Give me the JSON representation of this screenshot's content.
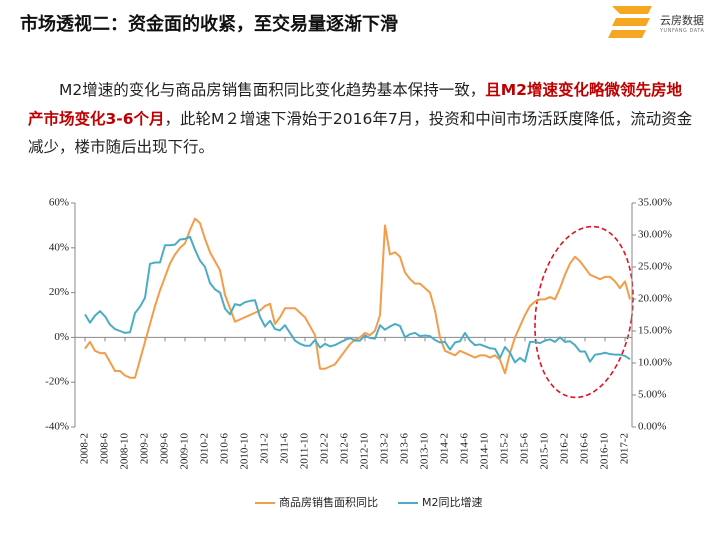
{
  "title": "市场透视二：资金面的收紧，至交易量逐渐下滑",
  "logo": {
    "name": "云房数据",
    "subname": "YUNFANG DATA"
  },
  "paragraph": [
    "M2增速的变化与商品房销售面积同比变化趋势基本保持一致，",
    "且M2增速变化略微领先房地产市场变化3-6个月",
    "，此轮M２增速下滑始于2016年7月，投资和中间市场活跃度降低，流动资金减少，楼市随后出现下行。"
  ],
  "chart_data": {
    "type": "line",
    "categories": [
      "2008-2",
      null,
      null,
      null,
      "2008-6",
      null,
      null,
      null,
      "2008-10",
      null,
      null,
      null,
      "2009-2",
      null,
      null,
      null,
      "2009-6",
      null,
      null,
      null,
      "2009-10",
      null,
      null,
      null,
      "2010-2",
      null,
      null,
      null,
      "2010-6",
      null,
      null,
      null,
      "2010-10",
      null,
      null,
      null,
      "2011-2",
      null,
      null,
      null,
      "2011-6",
      null,
      null,
      null,
      "2011-10",
      null,
      null,
      null,
      "2012-2",
      null,
      null,
      null,
      "2012-6",
      null,
      null,
      null,
      "2012-10",
      null,
      null,
      null,
      "2013-2",
      null,
      null,
      null,
      "2013-6",
      null,
      null,
      null,
      "2013-10",
      null,
      null,
      null,
      "2014-2",
      null,
      null,
      null,
      "2014-6",
      null,
      null,
      null,
      "2014-10",
      null,
      null,
      null,
      "2015-2",
      null,
      null,
      null,
      "2015-6",
      null,
      null,
      null,
      "2015-10",
      null,
      null,
      null,
      "2016-2",
      null,
      null,
      null,
      "2016-6",
      null,
      null,
      null,
      "2016-10",
      null,
      null,
      null,
      "2017-2",
      null
    ],
    "series": [
      {
        "name": "商品房销售面积同比",
        "color": "#f39c4a",
        "values": [
          -5,
          -2,
          -6,
          -7,
          -7,
          -11,
          -15,
          -15,
          -17,
          -18,
          -18,
          -10,
          -2,
          6,
          14,
          21,
          27,
          33,
          37,
          40,
          42,
          48,
          53,
          51,
          44,
          38,
          34,
          30,
          19,
          13,
          7,
          8,
          9,
          10,
          11,
          12,
          14,
          15,
          6,
          9,
          13,
          13,
          13,
          11,
          9,
          5,
          1,
          -14,
          -14,
          -13,
          -12,
          -9,
          -6,
          -3,
          -1,
          0,
          2,
          1,
          3,
          10,
          50,
          37,
          38,
          36,
          29,
          26,
          24,
          24,
          22,
          20,
          12,
          0,
          -6,
          -7,
          -8,
          -6,
          -7,
          -8,
          -9,
          -8,
          -8,
          -9,
          -8,
          -10,
          -16,
          -7,
          0,
          5,
          10,
          14,
          16,
          17,
          17,
          18,
          17,
          22,
          28,
          33,
          36,
          34,
          31,
          28,
          27,
          26,
          27,
          27,
          25,
          22,
          25,
          17
        ]
      },
      {
        "name": "M2同比增速",
        "color": "#4bacc6",
        "axis": "y2",
        "values": [
          17.6,
          16.3,
          17.4,
          18.1,
          17.3,
          16.0,
          15.3,
          15.0,
          14.7,
          14.8,
          17.8,
          18.8,
          20.2,
          25.5,
          25.7,
          25.7,
          28.4,
          28.4,
          28.5,
          29.3,
          29.4,
          29.7,
          27.7,
          26.0,
          25.0,
          22.5,
          21.5,
          21.0,
          18.5,
          17.6,
          19.2,
          19.0,
          19.5,
          19.7,
          19.8,
          17.2,
          15.7,
          16.6,
          15.3,
          15.1,
          15.9,
          14.7,
          13.5,
          13.0,
          12.7,
          12.7,
          13.6,
          12.4,
          13.0,
          12.6,
          12.8,
          13.2,
          13.6,
          13.9,
          13.5,
          13.5,
          14.3,
          13.9,
          13.8,
          15.9,
          15.2,
          15.7,
          16.1,
          15.8,
          14.0,
          14.5,
          14.7,
          14.2,
          14.3,
          14.2,
          13.6,
          13.2,
          13.3,
          12.1,
          13.2,
          13.4,
          14.7,
          13.5,
          12.8,
          12.9,
          12.6,
          12.3,
          12.2,
          10.8,
          12.5,
          11.6,
          10.1,
          10.8,
          10.2,
          13.3,
          13.3,
          13.1,
          13.5,
          13.7,
          13.3,
          14.0,
          13.3,
          13.4,
          12.8,
          11.8,
          11.8,
          10.2,
          11.3,
          11.4,
          11.6,
          11.4,
          11.3,
          11.3,
          11.1,
          10.6
        ]
      }
    ],
    "ylim": [
      -40,
      60
    ],
    "yticks": [
      {
        "value": -40,
        "label": "-40%"
      },
      {
        "value": -20,
        "label": "-20%"
      },
      {
        "value": 0,
        "label": "0%"
      },
      {
        "value": 20,
        "label": "20%"
      },
      {
        "value": 40,
        "label": "40%"
      },
      {
        "value": 60,
        "label": "60%"
      }
    ],
    "y2lim": [
      0,
      35
    ],
    "y2ticks": [
      {
        "value": 0,
        "label": "0.00%"
      },
      {
        "value": 5,
        "label": "5.00%"
      },
      {
        "value": 10,
        "label": "10.00%"
      },
      {
        "value": 15,
        "label": "15.00%"
      },
      {
        "value": 20,
        "label": "20.00%"
      },
      {
        "value": 25,
        "label": "25.00%"
      },
      {
        "value": 30,
        "label": "30.00%"
      },
      {
        "value": 35,
        "label": "35.00%"
      }
    ],
    "legend": "bottom",
    "grid": false
  }
}
